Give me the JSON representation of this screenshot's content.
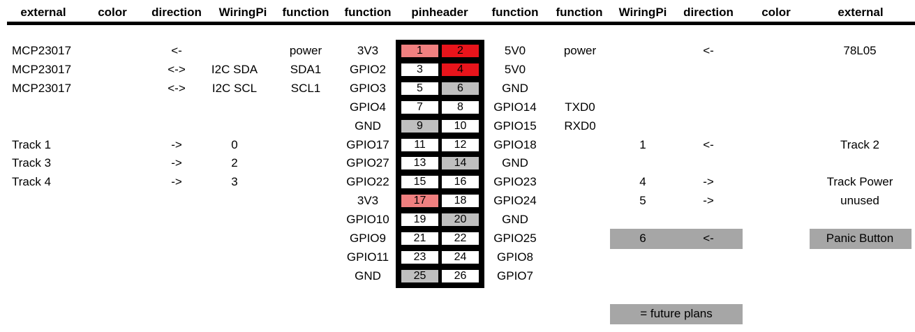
{
  "headers": [
    "external",
    "color",
    "direction",
    "WiringPi",
    "function",
    "function",
    "pinheader",
    "function",
    "function",
    "WiringPi",
    "direction",
    "color",
    "external"
  ],
  "rows": [
    {
      "ext_l": "MCP23017",
      "dir_l": "<-",
      "wpi_l": "",
      "fn_l2": "power",
      "fn_l1": "3V3",
      "pin_l": "1",
      "pin_r": "2",
      "fn_r1": "5V0",
      "fn_r2": "power",
      "wpi_r": "",
      "dir_r": "<-",
      "ext_r": "78L05"
    },
    {
      "ext_l": "MCP23017",
      "dir_l": "<->",
      "wpi_l": "I2C SDA",
      "fn_l2": "SDA1",
      "fn_l1": "GPIO2",
      "pin_l": "3",
      "pin_r": "4",
      "fn_r1": "5V0",
      "fn_r2": "",
      "wpi_r": "",
      "dir_r": "",
      "ext_r": ""
    },
    {
      "ext_l": "MCP23017",
      "dir_l": "<->",
      "wpi_l": "I2C SCL",
      "fn_l2": "SCL1",
      "fn_l1": "GPIO3",
      "pin_l": "5",
      "pin_r": "6",
      "fn_r1": "GND",
      "fn_r2": "",
      "wpi_r": "",
      "dir_r": "",
      "ext_r": ""
    },
    {
      "ext_l": "",
      "dir_l": "",
      "wpi_l": "",
      "fn_l2": "",
      "fn_l1": "GPIO4",
      "pin_l": "7",
      "pin_r": "8",
      "fn_r1": "GPIO14",
      "fn_r2": "TXD0",
      "wpi_r": "",
      "dir_r": "",
      "ext_r": ""
    },
    {
      "ext_l": "",
      "dir_l": "",
      "wpi_l": "",
      "fn_l2": "",
      "fn_l1": "GND",
      "pin_l": "9",
      "pin_r": "10",
      "fn_r1": "GPIO15",
      "fn_r2": "RXD0",
      "wpi_r": "",
      "dir_r": "",
      "ext_r": ""
    },
    {
      "ext_l": "Track 1",
      "dir_l": "->",
      "wpi_l": "0",
      "fn_l2": "",
      "fn_l1": "GPIO17",
      "pin_l": "11",
      "pin_r": "12",
      "fn_r1": "GPIO18",
      "fn_r2": "",
      "wpi_r": "1",
      "dir_r": "<-",
      "ext_r": "Track 2"
    },
    {
      "ext_l": "Track 3",
      "dir_l": "->",
      "wpi_l": "2",
      "fn_l2": "",
      "fn_l1": "GPIO27",
      "pin_l": "13",
      "pin_r": "14",
      "fn_r1": "GND",
      "fn_r2": "",
      "wpi_r": "",
      "dir_r": "",
      "ext_r": ""
    },
    {
      "ext_l": "Track 4",
      "dir_l": "->",
      "wpi_l": "3",
      "fn_l2": "",
      "fn_l1": "GPIO22",
      "pin_l": "15",
      "pin_r": "16",
      "fn_r1": "GPIO23",
      "fn_r2": "",
      "wpi_r": "4",
      "dir_r": "->",
      "ext_r": "Track Power"
    },
    {
      "ext_l": "",
      "dir_l": "",
      "wpi_l": "",
      "fn_l2": "",
      "fn_l1": "3V3",
      "pin_l": "17",
      "pin_r": "18",
      "fn_r1": "GPIO24",
      "fn_r2": "",
      "wpi_r": "5",
      "dir_r": "->",
      "ext_r": "unused"
    },
    {
      "ext_l": "",
      "dir_l": "",
      "wpi_l": "",
      "fn_l2": "",
      "fn_l1": "GPIO10",
      "pin_l": "19",
      "pin_r": "20",
      "fn_r1": "GND",
      "fn_r2": "",
      "wpi_r": "",
      "dir_r": "",
      "ext_r": ""
    },
    {
      "ext_l": "",
      "dir_l": "",
      "wpi_l": "",
      "fn_l2": "",
      "fn_l1": "GPIO9",
      "pin_l": "21",
      "pin_r": "22",
      "fn_r1": "GPIO25",
      "fn_r2": "",
      "wpi_r": "6",
      "dir_r": "<-",
      "ext_r": "Panic Button"
    },
    {
      "ext_l": "",
      "dir_l": "",
      "wpi_l": "",
      "fn_l2": "",
      "fn_l1": "GPIO11",
      "pin_l": "23",
      "pin_r": "24",
      "fn_r1": "GPIO8",
      "fn_r2": "",
      "wpi_r": "",
      "dir_r": "",
      "ext_r": ""
    },
    {
      "ext_l": "",
      "dir_l": "",
      "wpi_l": "",
      "fn_l2": "",
      "fn_l1": "GND",
      "pin_l": "25",
      "pin_r": "26",
      "fn_r1": "GPIO7",
      "fn_r2": "",
      "wpi_r": "",
      "dir_r": "",
      "ext_r": ""
    }
  ],
  "pin_colors": {
    "1": "#f08080",
    "2": "#e8141b",
    "4": "#e8141b",
    "17": "#f08080",
    "6": "#bfbfbf",
    "9": "#bfbfbf",
    "14": "#bfbfbf",
    "20": "#bfbfbf",
    "25": "#bfbfbf"
  },
  "legend": {
    "future_plans": "= future plans",
    "future_color": "#a6a6a6"
  }
}
